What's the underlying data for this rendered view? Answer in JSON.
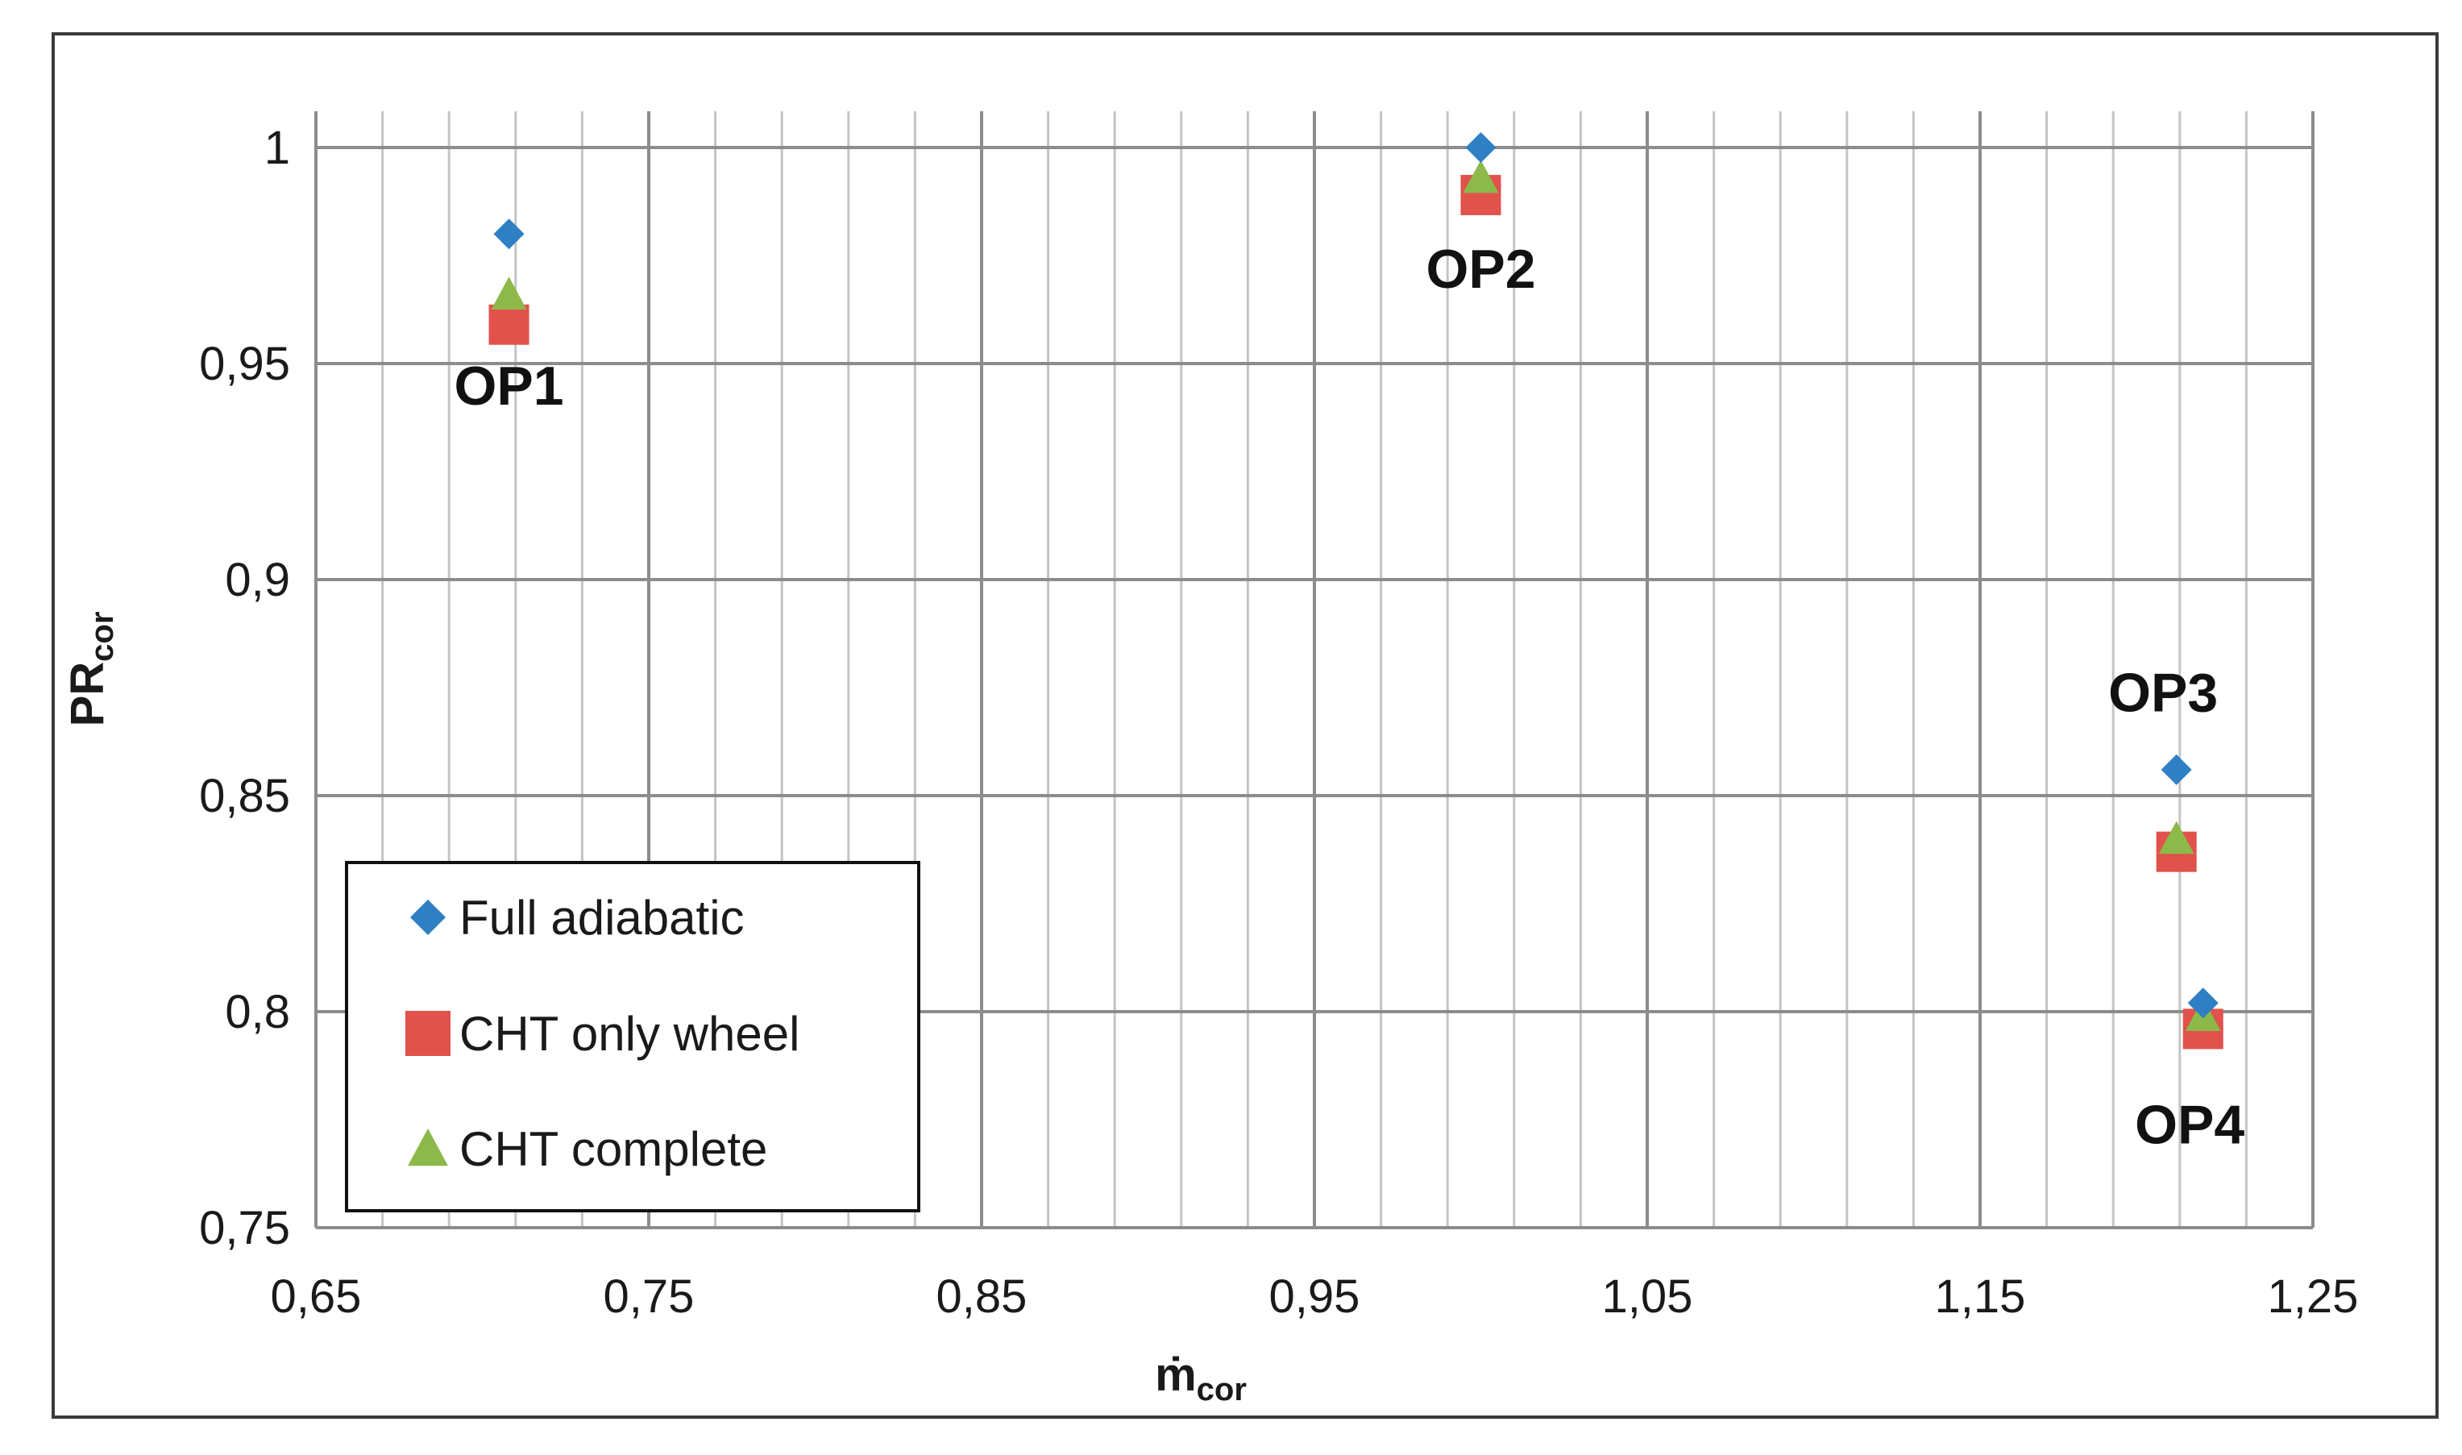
{
  "chart_data": {
    "type": "scatter",
    "title": "",
    "xlabel": {
      "main": "ṁ",
      "sub": "cor"
    },
    "ylabel": {
      "main": "PR",
      "sub": "cor"
    },
    "xlim": [
      0.65,
      1.25
    ],
    "ylim": [
      0.75,
      1.0
    ],
    "x_ticks": [
      "0,65",
      "0,75",
      "0,85",
      "0,95",
      "1,05",
      "1,15",
      "1,25"
    ],
    "y_ticks": [
      "0,75",
      "0,8",
      "0,85",
      "0,9",
      "0,95",
      "1"
    ],
    "x_tick_values": [
      0.65,
      0.75,
      0.85,
      0.95,
      1.05,
      1.15,
      1.25
    ],
    "y_tick_values": [
      0.75,
      0.8,
      0.85,
      0.9,
      0.95,
      1.0
    ],
    "minor_grid_step_x": 0.02,
    "grid": true,
    "legend_position": "bottom-left",
    "series": [
      {
        "name": "Full adiabatic",
        "marker": "diamond",
        "color": "#2e7fc4",
        "x": [
          0.708,
          1.0,
          1.209,
          1.217
        ],
        "y": [
          0.98,
          1.0,
          0.856,
          0.802
        ]
      },
      {
        "name": "CHT only wheel",
        "marker": "square",
        "color": "#e0524b",
        "x": [
          0.708,
          1.0,
          1.209,
          1.217
        ],
        "y": [
          0.959,
          0.989,
          0.837,
          0.796
        ]
      },
      {
        "name": "CHT complete",
        "marker": "triangle",
        "color": "#8cb94a",
        "x": [
          0.708,
          1.0,
          1.209,
          1.217
        ],
        "y": [
          0.966,
          0.993,
          0.84,
          0.799
        ]
      }
    ],
    "annotations": [
      {
        "text": "OP1",
        "x": 0.708,
        "y": 0.945
      },
      {
        "text": "OP2",
        "x": 1.0,
        "y": 0.972
      },
      {
        "text": "OP3",
        "x": 1.205,
        "y": 0.874
      },
      {
        "text": "OP4",
        "x": 1.213,
        "y": 0.774
      }
    ]
  }
}
